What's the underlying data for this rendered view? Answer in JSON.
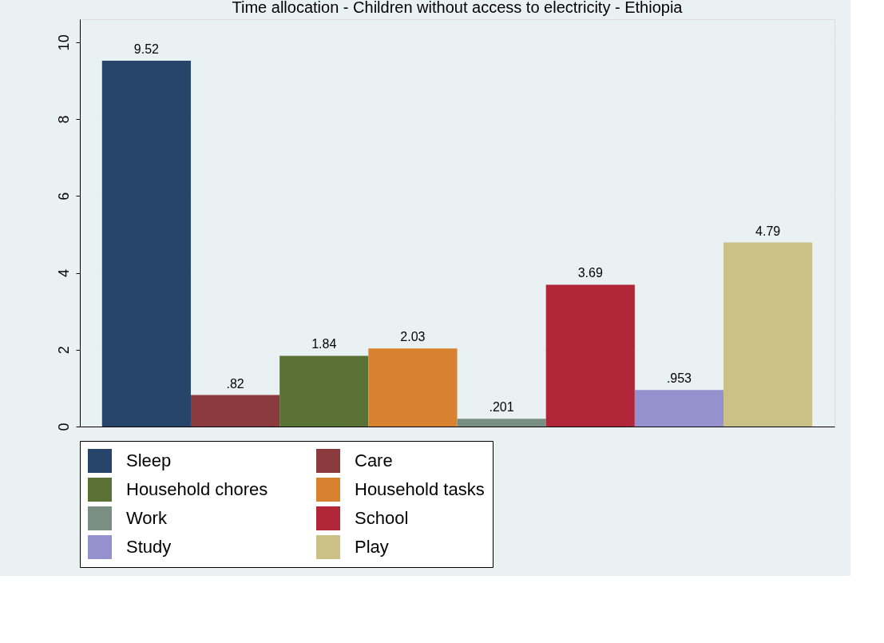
{
  "chart_data": {
    "type": "bar",
    "title": "Time allocation - Children without access to electricity - Ethiopia",
    "categories": [
      null
    ],
    "series": [
      {
        "name": "Sleep",
        "color": "#27456a",
        "values": [
          9.52
        ],
        "value_labels": [
          "9.52"
        ]
      },
      {
        "name": "Care",
        "color": "#8b3b3e",
        "values": [
          0.82
        ],
        "value_labels": [
          ".82"
        ]
      },
      {
        "name": "Household chores",
        "color": "#5b7237",
        "values": [
          1.84
        ],
        "value_labels": [
          "1.84"
        ]
      },
      {
        "name": "Household tasks",
        "color": "#d88230",
        "values": [
          2.03
        ],
        "value_labels": [
          "2.03"
        ]
      },
      {
        "name": "Work",
        "color": "#7a8f84",
        "values": [
          0.201
        ],
        "value_labels": [
          ".201"
        ]
      },
      {
        "name": "School",
        "color": "#b2263a",
        "values": [
          3.69
        ],
        "value_labels": [
          "3.69"
        ]
      },
      {
        "name": "Study",
        "color": "#9590ce",
        "values": [
          0.953
        ],
        "value_labels": [
          ".953"
        ]
      },
      {
        "name": "Play",
        "color": "#cbc187",
        "values": [
          4.79
        ],
        "value_labels": [
          "4.79"
        ]
      }
    ],
    "ylim": [
      0,
      10.6
    ],
    "yticks": [
      0,
      2,
      4,
      6,
      8,
      10
    ],
    "grid": "y",
    "legend": "bottom"
  }
}
